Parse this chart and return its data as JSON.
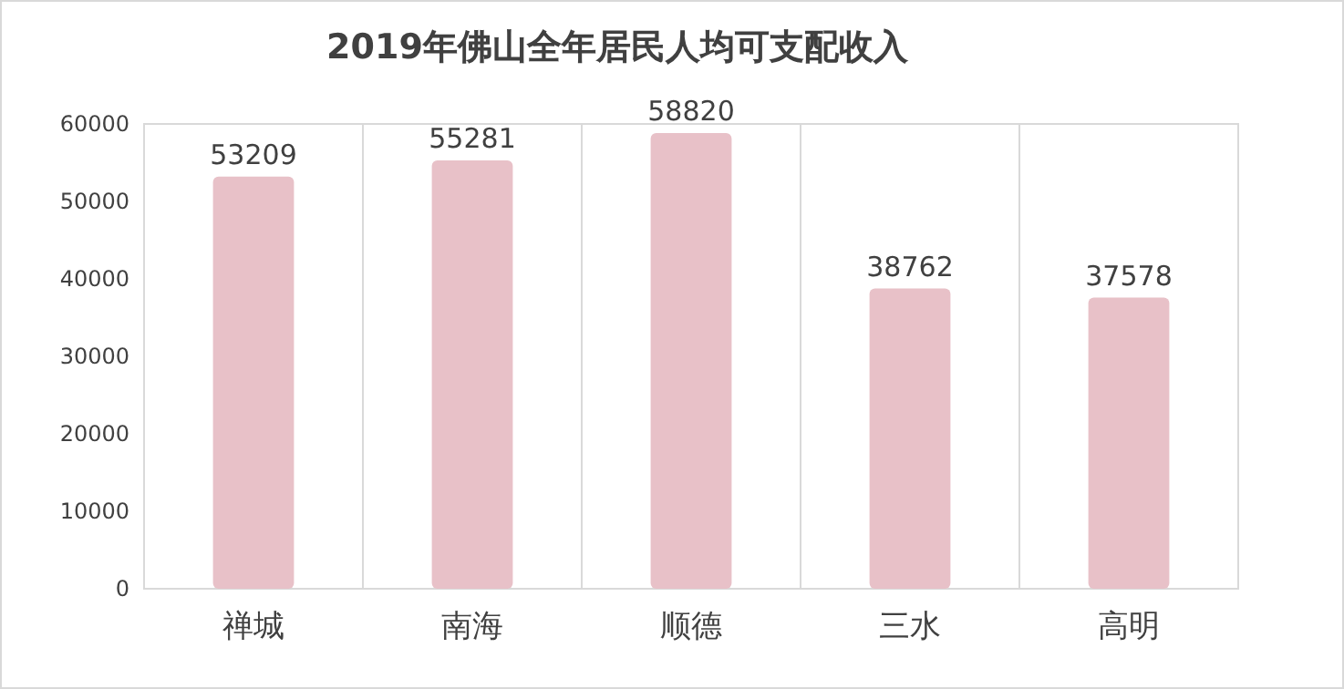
{
  "chart_data": {
    "type": "bar",
    "title": "2019年佛山全年居民人均可支配收入",
    "categories": [
      "禅城",
      "南海",
      "顺德",
      "三水",
      "高明"
    ],
    "values": [
      53209,
      55281,
      58820,
      38762,
      37578
    ],
    "color": "#e8c1c8",
    "data_labels": true,
    "ylim": [
      0,
      60000
    ],
    "yticks": [
      0,
      10000,
      20000,
      30000,
      40000,
      50000,
      60000
    ],
    "grid": "x"
  }
}
